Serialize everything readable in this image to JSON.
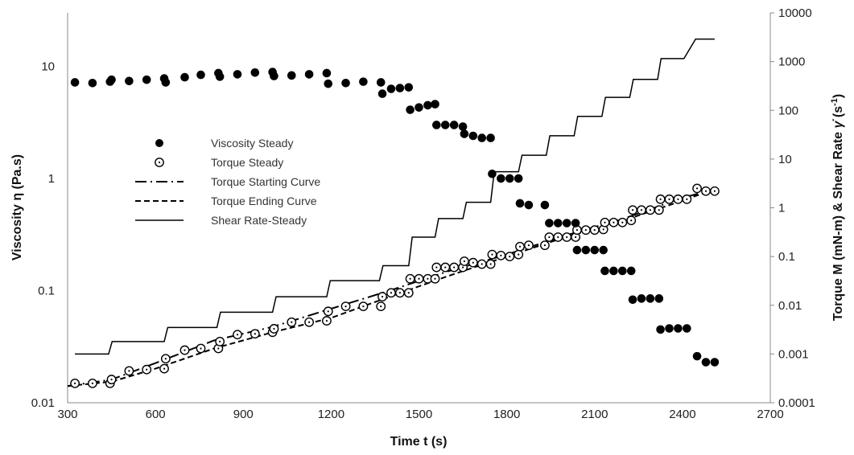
{
  "chart_data": {
    "type": "scatter",
    "xlabel": "Time t (s)",
    "ylabel_left": "Viscosity η (Pa.s)",
    "ylabel_right_main": "Torque M (mN-m) & Shear Rate ",
    "ylabel_right_symbol": "γ̇",
    "ylabel_right_unit_open": " (s",
    "ylabel_right_unit_sup": "-1",
    "ylabel_right_unit_close": ")",
    "xlim": [
      300,
      2700
    ],
    "xticks": [
      "300",
      "600",
      "900",
      "1200",
      "1500",
      "1800",
      "2100",
      "2400",
      "2700"
    ],
    "yleft_scale": "log",
    "yleft_lim": [
      0.01,
      30
    ],
    "yleft_ticks": [
      {
        "v": 0.01,
        "label": "0.01"
      },
      {
        "v": 0.1,
        "label": "0.1"
      },
      {
        "v": 1,
        "label": "1"
      },
      {
        "v": 10,
        "label": "10"
      }
    ],
    "yright_scale": "log",
    "yright_lim": [
      0.0001,
      10000
    ],
    "yright_ticks": [
      {
        "v": 0.0001,
        "label": "0.0001"
      },
      {
        "v": 0.001,
        "label": "0.001"
      },
      {
        "v": 0.01,
        "label": "0.01"
      },
      {
        "v": 0.1,
        "label": "0.1"
      },
      {
        "v": 1,
        "label": "1"
      },
      {
        "v": 10,
        "label": "10"
      },
      {
        "v": 100,
        "label": "100"
      },
      {
        "v": 1000,
        "label": "1000"
      },
      {
        "v": 10000,
        "label": "10000"
      }
    ],
    "grid": false,
    "legend_position": "center-left",
    "legend": [
      {
        "label": "Viscosity Steady",
        "marker": "filled-circle"
      },
      {
        "label": "Torque Steady",
        "marker": "open-circle"
      },
      {
        "label": "Torque Starting Curve",
        "marker": "long-dash-dot"
      },
      {
        "label": "Torque Ending Curve",
        "marker": "dash"
      },
      {
        "label": "Shear Rate-Steady",
        "marker": "solid"
      }
    ],
    "series": [
      {
        "name": "Viscosity Steady",
        "axis": "left",
        "style": "filled-circle",
        "color": "#000000",
        "points": [
          [
            325,
            7.2
          ],
          [
            385,
            7.1
          ],
          [
            445,
            7.3
          ],
          [
            450,
            7.6
          ],
          [
            510,
            7.4
          ],
          [
            570,
            7.6
          ],
          [
            630,
            7.8
          ],
          [
            635,
            7.2
          ],
          [
            700,
            8.0
          ],
          [
            755,
            8.4
          ],
          [
            815,
            8.7
          ],
          [
            820,
            8.1
          ],
          [
            880,
            8.5
          ],
          [
            940,
            8.8
          ],
          [
            1000,
            8.9
          ],
          [
            1005,
            8.2
          ],
          [
            1065,
            8.3
          ],
          [
            1125,
            8.5
          ],
          [
            1185,
            8.7
          ],
          [
            1190,
            7.0
          ],
          [
            1250,
            7.1
          ],
          [
            1310,
            7.3
          ],
          [
            1370,
            7.2
          ],
          [
            1375,
            5.7
          ],
          [
            1405,
            6.3
          ],
          [
            1435,
            6.4
          ],
          [
            1465,
            6.5
          ],
          [
            1470,
            4.1
          ],
          [
            1500,
            4.3
          ],
          [
            1530,
            4.5
          ],
          [
            1555,
            4.6
          ],
          [
            1560,
            3.0
          ],
          [
            1590,
            3.0
          ],
          [
            1620,
            3.0
          ],
          [
            1650,
            2.9
          ],
          [
            1655,
            2.5
          ],
          [
            1685,
            2.4
          ],
          [
            1715,
            2.3
          ],
          [
            1745,
            2.3
          ],
          [
            1750,
            1.1
          ],
          [
            1780,
            1.0
          ],
          [
            1810,
            1.0
          ],
          [
            1840,
            1.0
          ],
          [
            1845,
            0.6
          ],
          [
            1875,
            0.58
          ],
          [
            1930,
            0.58
          ],
          [
            1945,
            0.4
          ],
          [
            1975,
            0.4
          ],
          [
            2005,
            0.4
          ],
          [
            2035,
            0.4
          ],
          [
            2040,
            0.23
          ],
          [
            2070,
            0.23
          ],
          [
            2100,
            0.23
          ],
          [
            2130,
            0.23
          ],
          [
            2135,
            0.15
          ],
          [
            2165,
            0.15
          ],
          [
            2195,
            0.15
          ],
          [
            2225,
            0.15
          ],
          [
            2230,
            0.083
          ],
          [
            2260,
            0.085
          ],
          [
            2290,
            0.085
          ],
          [
            2320,
            0.085
          ],
          [
            2325,
            0.045
          ],
          [
            2355,
            0.046
          ],
          [
            2385,
            0.046
          ],
          [
            2415,
            0.046
          ],
          [
            2450,
            0.026
          ],
          [
            2480,
            0.023
          ],
          [
            2510,
            0.023
          ]
        ]
      },
      {
        "name": "Torque Steady",
        "axis": "right",
        "style": "open-circle",
        "color": "#000000",
        "points": [
          [
            325,
            0.00025
          ],
          [
            385,
            0.00025
          ],
          [
            445,
            0.00025
          ],
          [
            450,
            0.0003
          ],
          [
            510,
            0.00045
          ],
          [
            570,
            0.00048
          ],
          [
            630,
            0.0005
          ],
          [
            635,
            0.0008
          ],
          [
            700,
            0.0012
          ],
          [
            755,
            0.0013
          ],
          [
            815,
            0.0013
          ],
          [
            820,
            0.0018
          ],
          [
            880,
            0.0025
          ],
          [
            940,
            0.0026
          ],
          [
            1000,
            0.0028
          ],
          [
            1005,
            0.0033
          ],
          [
            1065,
            0.0045
          ],
          [
            1125,
            0.0045
          ],
          [
            1185,
            0.0048
          ],
          [
            1190,
            0.0075
          ],
          [
            1250,
            0.0095
          ],
          [
            1310,
            0.0095
          ],
          [
            1370,
            0.0095
          ],
          [
            1375,
            0.015
          ],
          [
            1405,
            0.018
          ],
          [
            1435,
            0.018
          ],
          [
            1465,
            0.018
          ],
          [
            1470,
            0.035
          ],
          [
            1500,
            0.035
          ],
          [
            1530,
            0.035
          ],
          [
            1555,
            0.035
          ],
          [
            1560,
            0.06
          ],
          [
            1590,
            0.06
          ],
          [
            1620,
            0.06
          ],
          [
            1650,
            0.06
          ],
          [
            1655,
            0.08
          ],
          [
            1685,
            0.075
          ],
          [
            1715,
            0.07
          ],
          [
            1745,
            0.07
          ],
          [
            1750,
            0.11
          ],
          [
            1780,
            0.105
          ],
          [
            1810,
            0.1
          ],
          [
            1840,
            0.11
          ],
          [
            1845,
            0.16
          ],
          [
            1875,
            0.17
          ],
          [
            1930,
            0.17
          ],
          [
            1945,
            0.25
          ],
          [
            1975,
            0.25
          ],
          [
            2005,
            0.25
          ],
          [
            2035,
            0.25
          ],
          [
            2040,
            0.35
          ],
          [
            2070,
            0.35
          ],
          [
            2100,
            0.35
          ],
          [
            2130,
            0.36
          ],
          [
            2135,
            0.5
          ],
          [
            2165,
            0.5
          ],
          [
            2195,
            0.5
          ],
          [
            2225,
            0.55
          ],
          [
            2230,
            0.9
          ],
          [
            2260,
            0.9
          ],
          [
            2290,
            0.9
          ],
          [
            2320,
            0.9
          ],
          [
            2325,
            1.5
          ],
          [
            2355,
            1.5
          ],
          [
            2385,
            1.5
          ],
          [
            2415,
            1.5
          ],
          [
            2450,
            2.5
          ],
          [
            2480,
            2.2
          ],
          [
            2510,
            2.2
          ]
        ]
      },
      {
        "name": "Torque Starting Curve",
        "axis": "right",
        "style": "long-dash-dot",
        "color": "#000000",
        "points": [
          [
            300,
            0.00022
          ],
          [
            450,
            0.0003
          ],
          [
            600,
            0.00065
          ],
          [
            800,
            0.0019
          ],
          [
            1000,
            0.0036
          ],
          [
            1200,
            0.0085
          ],
          [
            1400,
            0.02
          ],
          [
            1600,
            0.05
          ],
          [
            1800,
            0.11
          ],
          [
            2000,
            0.27
          ],
          [
            2200,
            0.6
          ],
          [
            2400,
            1.6
          ],
          [
            2510,
            2.4
          ]
        ]
      },
      {
        "name": "Torque Ending Curve",
        "axis": "right",
        "style": "dash",
        "color": "#000000",
        "points": [
          [
            300,
            0.00022
          ],
          [
            450,
            0.00027
          ],
          [
            600,
            0.0005
          ],
          [
            800,
            0.0013
          ],
          [
            1000,
            0.0028
          ],
          [
            1200,
            0.0055
          ],
          [
            1400,
            0.015
          ],
          [
            1600,
            0.04
          ],
          [
            1800,
            0.1
          ],
          [
            2000,
            0.25
          ],
          [
            2200,
            0.55
          ],
          [
            2400,
            1.4
          ],
          [
            2510,
            2.4
          ]
        ]
      },
      {
        "name": "Shear Rate-Steady",
        "axis": "right",
        "style": "solid",
        "color": "#000000",
        "points": [
          [
            325,
            0.001
          ],
          [
            440,
            0.001
          ],
          [
            452,
            0.0018
          ],
          [
            630,
            0.0018
          ],
          [
            642,
            0.0035
          ],
          [
            810,
            0.0035
          ],
          [
            822,
            0.0072
          ],
          [
            1000,
            0.0072
          ],
          [
            1012,
            0.015
          ],
          [
            1185,
            0.015
          ],
          [
            1197,
            0.032
          ],
          [
            1365,
            0.032
          ],
          [
            1377,
            0.065
          ],
          [
            1465,
            0.065
          ],
          [
            1477,
            0.25
          ],
          [
            1555,
            0.25
          ],
          [
            1567,
            0.6
          ],
          [
            1650,
            0.6
          ],
          [
            1662,
            1.3
          ],
          [
            1745,
            1.3
          ],
          [
            1757,
            5.5
          ],
          [
            1840,
            5.5
          ],
          [
            1852,
            12
          ],
          [
            1935,
            12
          ],
          [
            1947,
            30
          ],
          [
            2030,
            30
          ],
          [
            2042,
            75
          ],
          [
            2125,
            75
          ],
          [
            2137,
            185
          ],
          [
            2220,
            185
          ],
          [
            2232,
            430
          ],
          [
            2315,
            430
          ],
          [
            2327,
            1150
          ],
          [
            2405,
            1150
          ],
          [
            2445,
            2900
          ],
          [
            2510,
            2900
          ]
        ]
      }
    ]
  }
}
